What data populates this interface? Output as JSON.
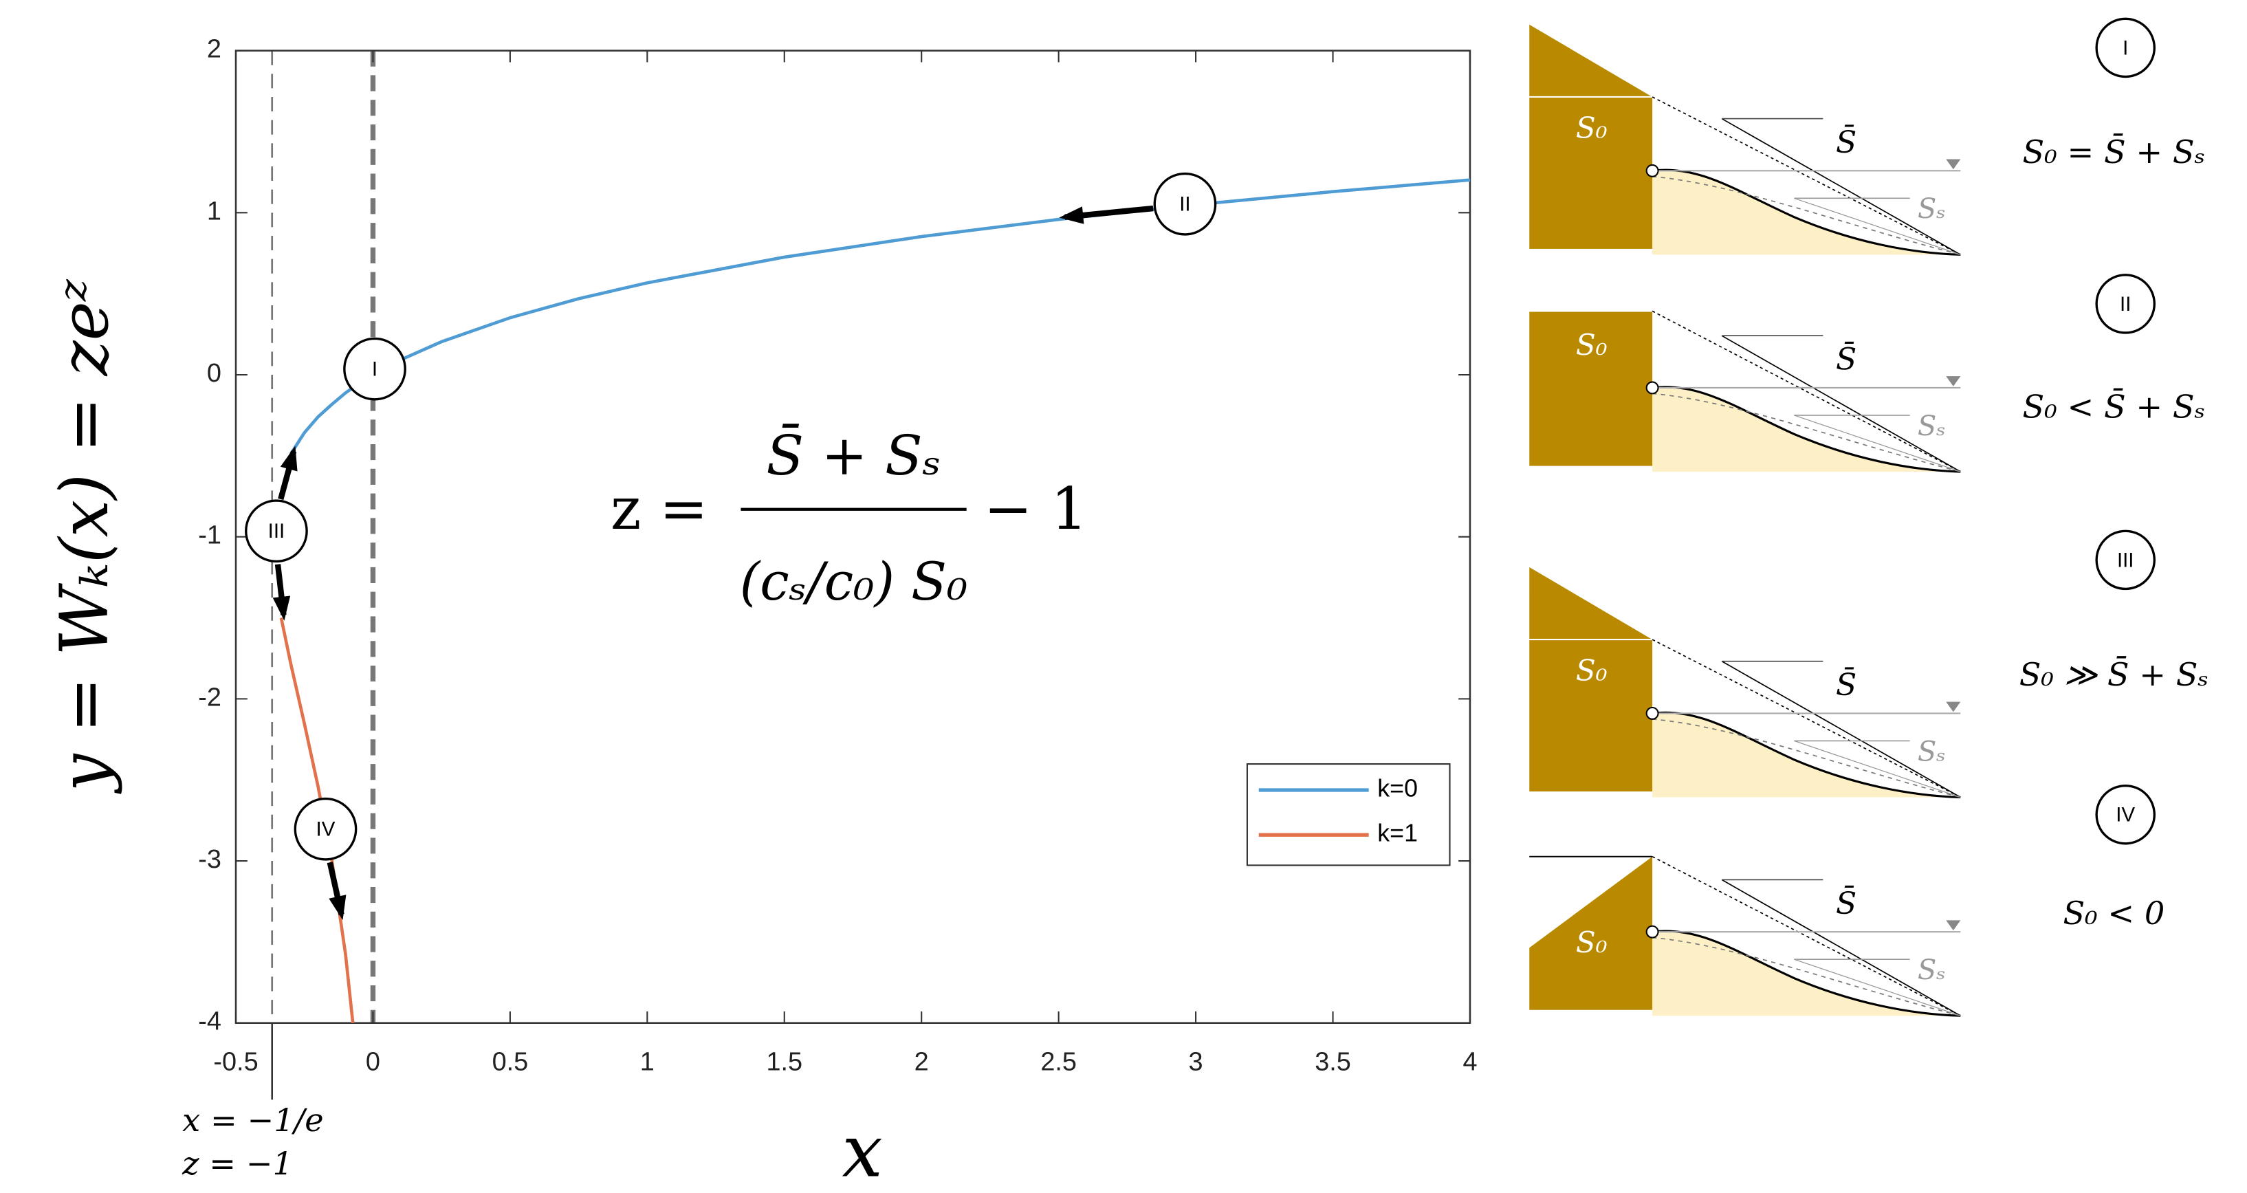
{
  "chart_data": {
    "type": "line",
    "x": [
      -0.3347,
      -0.3,
      -0.25,
      -0.2,
      -0.15,
      -0.1,
      -0.0733,
      0,
      0.1,
      0.25,
      0.5,
      0.75,
      1,
      1.5,
      2,
      2.5,
      3,
      3.5,
      4
    ],
    "series": [
      {
        "name": "k=0",
        "color": "#4f9cd4",
        "values": [
          null,
          -0.4894,
          -0.3574,
          -0.2592,
          -0.183,
          -0.1118,
          -0.08,
          0,
          0.0913,
          0.2039,
          0.3517,
          0.4696,
          0.5671,
          0.7259,
          0.8526,
          0.9586,
          1.0499,
          1.1299,
          1.2022
        ]
      },
      {
        "name": "k=1",
        "color": "#e2724b",
        "values": [
          -1.5,
          -1.7813,
          -2.1533,
          -2.5426,
          -2.995,
          -3.5772,
          -4.0,
          null,
          null,
          null,
          null,
          null,
          null,
          null,
          null,
          null,
          null,
          null,
          null
        ]
      }
    ],
    "xlim": [
      -0.5,
      4
    ],
    "ylim": [
      -4,
      2
    ],
    "xticks": [
      -0.5,
      0,
      0.5,
      1,
      1.5,
      2,
      2.5,
      3,
      3.5,
      4
    ],
    "yticks": [
      -4,
      -3,
      -2,
      -1,
      0,
      1,
      2
    ],
    "grid": false,
    "legend": "lower-right",
    "xlabel": "x",
    "ylabel": "y = Wₖ(x) = zeᶻ",
    "vlines": [
      -0.3679,
      0
    ],
    "branch_label": [
      "x = −1/e",
      "z = −1"
    ],
    "equation": {
      "lhs": "z =",
      "numerator": "S̄ + Sₛ",
      "denominator": "(cₛ/c₀) S₀",
      "tail": "− 1"
    },
    "annotations": [
      "I",
      "II",
      "III",
      "IV"
    ]
  },
  "panels": [
    {
      "label": "I",
      "equation": "S₀ = S̄ + Sₛ",
      "s0": "S₀",
      "sbar": "S̄",
      "ss": "Sₛ"
    },
    {
      "label": "II",
      "equation": "S₀ < S̄ + Sₛ",
      "s0": "S₀",
      "sbar": "S̄",
      "ss": "Sₛ"
    },
    {
      "label": "III",
      "equation": "S₀ ≫ S̄ + Sₛ",
      "s0": "S₀",
      "sbar": "S̄",
      "ss": "Sₛ"
    },
    {
      "label": "IV",
      "equation": "S₀ < 0",
      "s0": "S₀",
      "sbar": "S̄",
      "ss": "Sₛ"
    }
  ]
}
